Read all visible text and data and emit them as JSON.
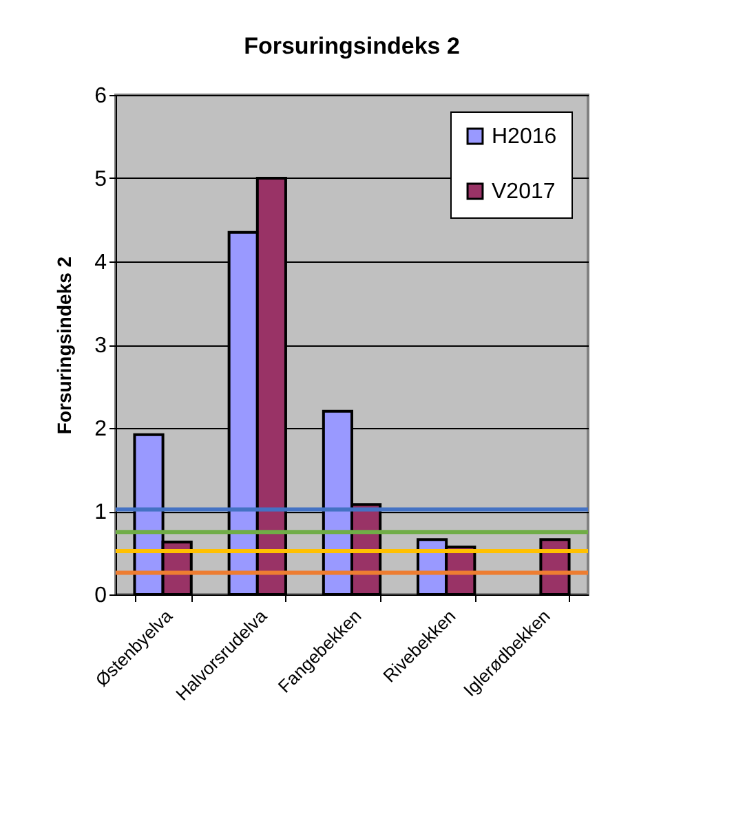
{
  "chart_data": {
    "type": "bar",
    "title": "Forsuringsindeks 2",
    "ylabel": "Forsuringsindeks 2",
    "categories": [
      "Østenbyelva",
      "Halvorsrudelva",
      "Fangebekken",
      "Rivebekken",
      "Iglerødbekken"
    ],
    "series": [
      {
        "name": "H2016",
        "color": "#9999ff",
        "values": [
          1.92,
          4.35,
          2.2,
          0.66,
          null
        ]
      },
      {
        "name": "V2017",
        "color": "#993366",
        "values": [
          0.63,
          5.0,
          1.08,
          0.57,
          0.66
        ]
      }
    ],
    "ylim": [
      0,
      6
    ],
    "yticks": [
      0,
      1,
      2,
      3,
      4,
      5,
      6
    ],
    "grid": "y",
    "legend": "top right",
    "ref_lines": [
      {
        "axis": "y",
        "value": 1.02,
        "color": "#4472c4"
      },
      {
        "axis": "y",
        "value": 0.75,
        "color": "#70ad47"
      },
      {
        "axis": "y",
        "value": 0.52,
        "color": "#ffc000"
      },
      {
        "axis": "y",
        "value": 0.26,
        "color": "#ed7d31"
      }
    ]
  }
}
